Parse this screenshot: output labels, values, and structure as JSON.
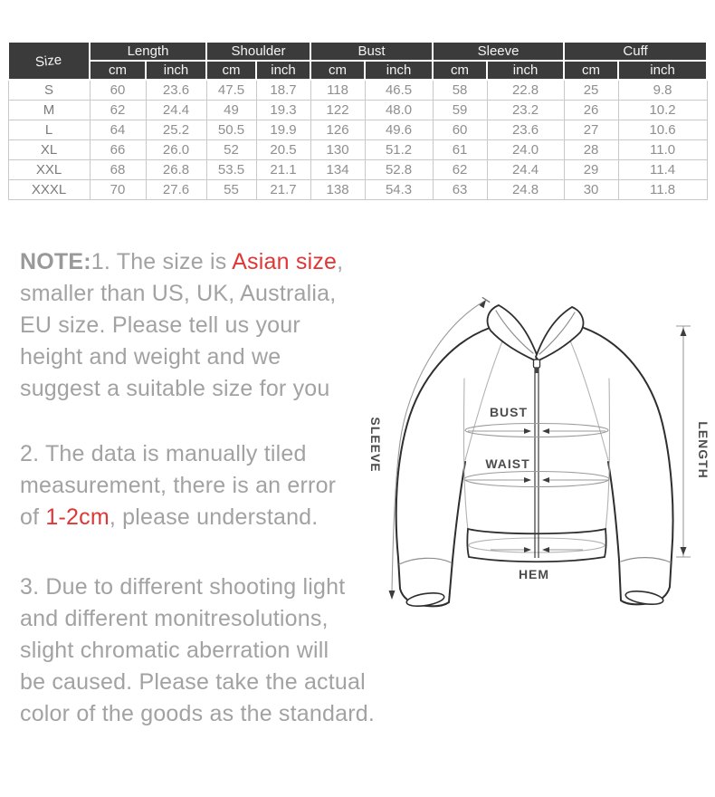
{
  "table": {
    "size_header": "Size",
    "unit_cm": "cm",
    "unit_inch": "inch",
    "groups": [
      "Length",
      "Shoulder",
      "Bust",
      "Sleeve",
      "Cuff"
    ],
    "rows": [
      {
        "size": "S",
        "cells": [
          "60",
          "23.6",
          "47.5",
          "18.7",
          "118",
          "46.5",
          "58",
          "22.8",
          "25",
          "9.8"
        ]
      },
      {
        "size": "M",
        "cells": [
          "62",
          "24.4",
          "49",
          "19.3",
          "122",
          "48.0",
          "59",
          "23.2",
          "26",
          "10.2"
        ]
      },
      {
        "size": "L",
        "cells": [
          "64",
          "25.2",
          "50.5",
          "19.9",
          "126",
          "49.6",
          "60",
          "23.6",
          "27",
          "10.6"
        ]
      },
      {
        "size": "XL",
        "cells": [
          "66",
          "26.0",
          "52",
          "20.5",
          "130",
          "51.2",
          "61",
          "24.0",
          "28",
          "11.0"
        ]
      },
      {
        "size": "XXL",
        "cells": [
          "68",
          "26.8",
          "53.5",
          "21.1",
          "134",
          "52.8",
          "62",
          "24.4",
          "29",
          "11.4"
        ]
      },
      {
        "size": "XXXL",
        "cells": [
          "70",
          "27.6",
          "55",
          "21.7",
          "138",
          "54.3",
          "63",
          "24.8",
          "30",
          "11.8"
        ]
      }
    ]
  },
  "notes": [
    {
      "lines": [
        [
          {
            "t": "NOTE:",
            "b": 1
          },
          {
            "t": "1. The size is "
          },
          {
            "t": "Asian size",
            "r": 1
          },
          {
            "t": ","
          }
        ],
        [
          {
            "t": "smaller than US, UK, Australia,"
          }
        ],
        [
          {
            "t": "EU size. Please tell us your"
          }
        ],
        [
          {
            "t": "height and weight and we"
          }
        ],
        [
          {
            "t": "suggest a suitable size for you"
          }
        ]
      ]
    },
    {
      "lines": [
        [
          {
            "t": "2. The data is manually tiled"
          }
        ],
        [
          {
            "t": "measurement, there is an error"
          }
        ],
        [
          {
            "t": "of "
          },
          {
            "t": "1-2cm",
            "r": 1
          },
          {
            "t": ", please understand."
          }
        ]
      ]
    },
    {
      "lines": [
        [
          {
            "t": "3. Due to different shooting light"
          }
        ],
        [
          {
            "t": "and different monitresolutions,"
          }
        ],
        [
          {
            "t": "slight chromatic aberration will"
          }
        ],
        [
          {
            "t": "be caused. Please take the actual"
          }
        ],
        [
          {
            "t": "color of the goods as the standard."
          }
        ]
      ]
    }
  ],
  "diagram": {
    "sleeve_label": "SLEEVE",
    "length_label": "LENGTH",
    "bust_label": "BUST",
    "waist_label": "WAIST",
    "hem_label": "HEM"
  },
  "colors": {
    "accent_red": "#e03636",
    "table_header_bg": "#3b3b3b",
    "note_text": "#a2a2a2"
  }
}
